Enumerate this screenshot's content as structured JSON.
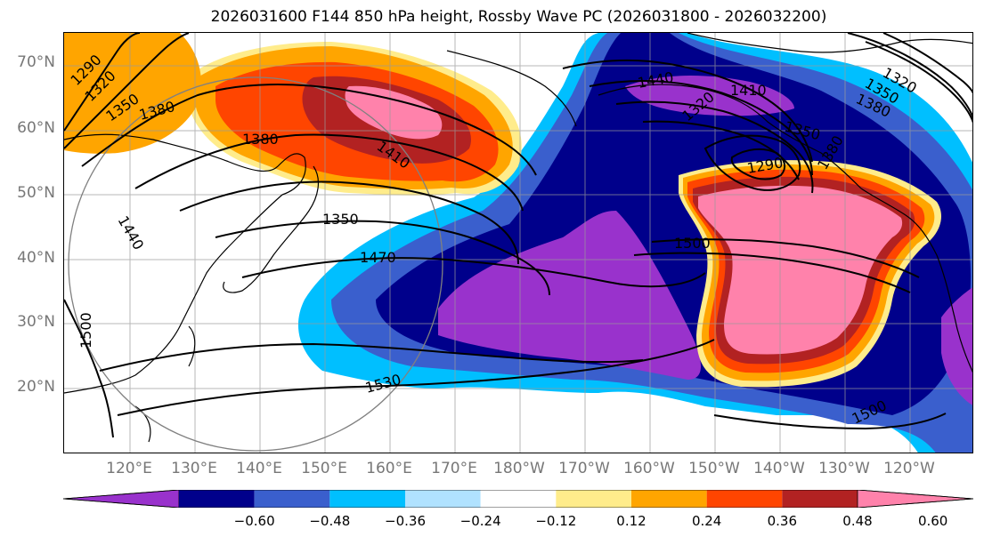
{
  "title": "2026031600 F144 850 hPa height, Rossby Wave PC (2026031800 - 2026032200)",
  "lat_labels": [
    "70°N",
    "60°N",
    "50°N",
    "40°N",
    "30°N",
    "20°N"
  ],
  "lon_labels": [
    "120°E",
    "130°E",
    "140°E",
    "150°E",
    "160°E",
    "170°E",
    "180°W",
    "170°W",
    "160°W",
    "150°W",
    "140°W",
    "130°W",
    "120°W"
  ],
  "contour_labels": [
    "1290",
    "1320",
    "1350",
    "1380",
    "1380",
    "1410",
    "1350",
    "1470",
    "1440",
    "1500",
    "1530",
    "1440",
    "1410",
    "1350",
    "1320",
    "1350",
    "1380",
    "1290",
    "1380",
    "1500",
    "1500",
    "1320"
  ],
  "colorbar": {
    "colors": [
      "#9932CC",
      "#00008B",
      "#3A5FCD",
      "#00BFFF",
      "#B0E2FF",
      "#FFFFFF",
      "#FFEC8B",
      "#FFA500",
      "#FF4500",
      "#B22222",
      "#FF82AB"
    ],
    "tick_labels": [
      "−0.60",
      "−0.48",
      "−0.36",
      "−0.24",
      "−0.12",
      "0.12",
      "0.24",
      "0.36",
      "0.48",
      "0.60"
    ]
  }
}
